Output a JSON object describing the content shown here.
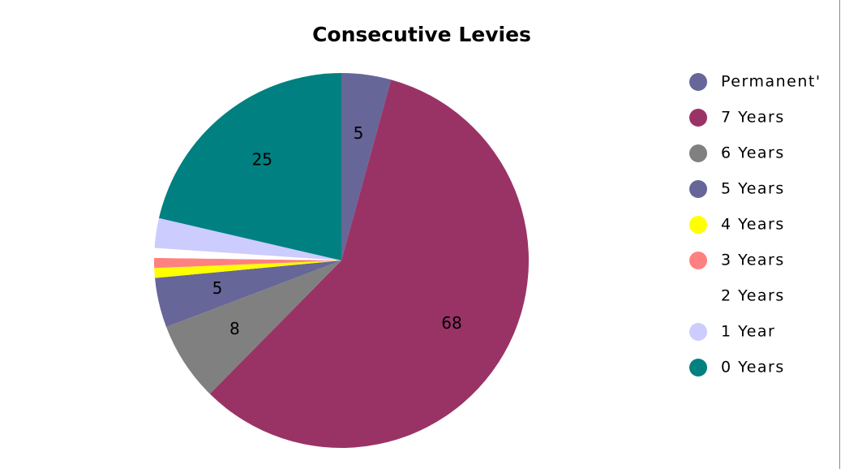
{
  "chart_data": {
    "type": "pie",
    "title": "Consecutive Levies",
    "categories": [
      "Permanent'",
      "7 Years",
      "6 Years",
      "5 Years",
      "4 Years",
      "3 Years",
      "2 Years",
      "1 Year",
      "0 Years"
    ],
    "values": [
      5,
      68,
      8,
      5,
      1,
      1,
      1,
      3,
      25
    ],
    "data_labels": [
      "5",
      "68",
      "8",
      "5",
      "",
      "",
      "",
      "",
      "25"
    ],
    "colors": [
      "#666699",
      "#993366",
      "#808080",
      "#666699",
      "#ffff00",
      "#ff8080",
      "#ffffff",
      "#ccccff",
      "#008080"
    ],
    "legend_position": "right",
    "start_angle_deg": 0,
    "direction": "clockwise"
  }
}
